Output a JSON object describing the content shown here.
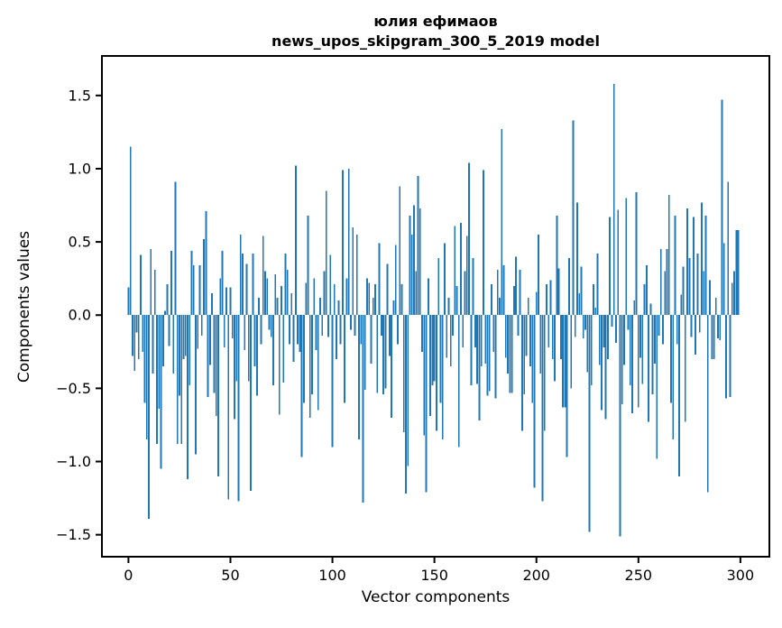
{
  "figure": {
    "background": "#ffffff"
  },
  "chart_data": {
    "type": "bar",
    "title": "юлия ефимаов",
    "subtitle": "news_upos_skipgram_300_5_2019 model",
    "xlabel": "Vector components",
    "ylabel": "Components values",
    "bar_color": "#1f77b4",
    "axis_color": "#000000",
    "grid": false,
    "legend_position": "none",
    "xticks": [
      0,
      50,
      100,
      150,
      200,
      250,
      300
    ],
    "yticks": [
      -1.5,
      -1.0,
      -0.5,
      0.0,
      0.5,
      1.0,
      1.5
    ],
    "xlim": [
      -13,
      314.2
    ],
    "ylim": [
      -1.65,
      1.77
    ],
    "x_start": 0,
    "bar_width": 0.8,
    "values": [
      0.19,
      1.15,
      -0.28,
      -0.38,
      -0.12,
      -0.3,
      0.41,
      -0.25,
      -0.6,
      -0.85,
      -1.39,
      0.45,
      -0.4,
      0.31,
      -0.88,
      -0.64,
      -1.05,
      -0.35,
      0.03,
      0.21,
      -0.21,
      0.44,
      -0.4,
      0.91,
      -0.88,
      -0.55,
      -0.88,
      -0.3,
      -0.28,
      -1.12,
      -0.48,
      0.44,
      0.34,
      -0.95,
      -0.23,
      0.34,
      -0.14,
      0.52,
      0.71,
      -0.56,
      -0.34,
      0.15,
      -0.53,
      -0.69,
      -1.1,
      0.25,
      0.44,
      -0.22,
      0.19,
      -1.26,
      0.19,
      -0.16,
      -0.71,
      -0.45,
      -1.27,
      0.55,
      0.42,
      -0.24,
      0.35,
      -0.45,
      -1.2,
      0.42,
      -0.35,
      -0.55,
      0.12,
      -0.2,
      0.54,
      0.3,
      0.25,
      -0.1,
      -0.15,
      -0.48,
      0.28,
      0.12,
      -0.68,
      0.2,
      -0.46,
      0.42,
      0.31,
      -0.2,
      0.15,
      -0.32,
      1.02,
      -0.2,
      -0.25,
      -0.97,
      -0.6,
      0.22,
      0.68,
      -0.7,
      -0.54,
      0.25,
      -0.24,
      -0.65,
      0.12,
      -0.14,
      0.3,
      0.85,
      -0.15,
      0.41,
      -0.9,
      0.21,
      -0.3,
      0.1,
      -0.2,
      0.99,
      -0.6,
      0.25,
      1.0,
      -0.1,
      0.6,
      -0.14,
      0.55,
      -0.85,
      -0.2,
      -1.28,
      -0.51,
      0.25,
      0.22,
      -0.33,
      0.12,
      0.21,
      -0.53,
      0.49,
      -0.14,
      -0.54,
      -0.5,
      0.35,
      -0.28,
      -0.7,
      0.1,
      0.48,
      -0.2,
      0.88,
      0.21,
      -0.8,
      -1.22,
      -1.03,
      0.68,
      0.55,
      0.75,
      0.3,
      0.95,
      0.73,
      -0.25,
      -0.82,
      -1.21,
      0.25,
      -0.69,
      -0.48,
      -0.45,
      -0.79,
      0.39,
      -0.6,
      -0.85,
      0.49,
      -0.29,
      0.12,
      -0.35,
      -0.14,
      0.61,
      0.2,
      -0.9,
      0.63,
      -0.22,
      0.3,
      0.54,
      1.04,
      -0.48,
      0.39,
      -0.22,
      -0.47,
      -0.72,
      -0.35,
      0.99,
      -0.33,
      -0.55,
      -0.52,
      0.21,
      -0.25,
      -0.57,
      0.31,
      0.12,
      1.27,
      0.34,
      -0.29,
      -0.4,
      -0.53,
      -0.53,
      0.2,
      0.4,
      -0.14,
      0.31,
      -0.79,
      -0.54,
      -0.28,
      0.12,
      -0.35,
      -0.6,
      -1.18,
      0.16,
      0.55,
      -0.4,
      -1.27,
      -0.79,
      0.21,
      -0.22,
      0.24,
      -0.3,
      -0.45,
      0.68,
      0.32,
      -0.3,
      -0.63,
      -0.63,
      -0.97,
      0.39,
      -0.5,
      1.33,
      -0.15,
      0.77,
      0.15,
      0.33,
      -0.16,
      -0.1,
      -0.39,
      -1.48,
      -0.48,
      0.21,
      0.05,
      0.42,
      -0.34,
      -0.65,
      -0.22,
      -0.71,
      -0.3,
      0.67,
      -0.08,
      1.58,
      -0.19,
      0.72,
      -1.51,
      -0.61,
      -0.34,
      0.8,
      -0.1,
      -0.48,
      -0.67,
      0.1,
      0.84,
      -0.63,
      -0.29,
      -0.47,
      0.21,
      0.34,
      -0.73,
      0.08,
      -0.54,
      -0.33,
      -0.98,
      -0.14,
      0.45,
      -0.2,
      0.3,
      0.45,
      0.82,
      -0.6,
      -0.85,
      0.68,
      -0.2,
      -1.1,
      0.14,
      0.33,
      -0.73,
      0.73,
      0.39,
      -0.15,
      0.67,
      -0.27,
      0.42,
      -0.12,
      0.77,
      0.3,
      0.68,
      -1.21,
      0.24,
      -0.3,
      -0.3,
      0.12,
      -0.16,
      -0.17,
      1.47,
      0.49,
      -0.57,
      0.91,
      -0.56,
      0.22,
      0.3,
      0.58,
      0.58
    ]
  }
}
